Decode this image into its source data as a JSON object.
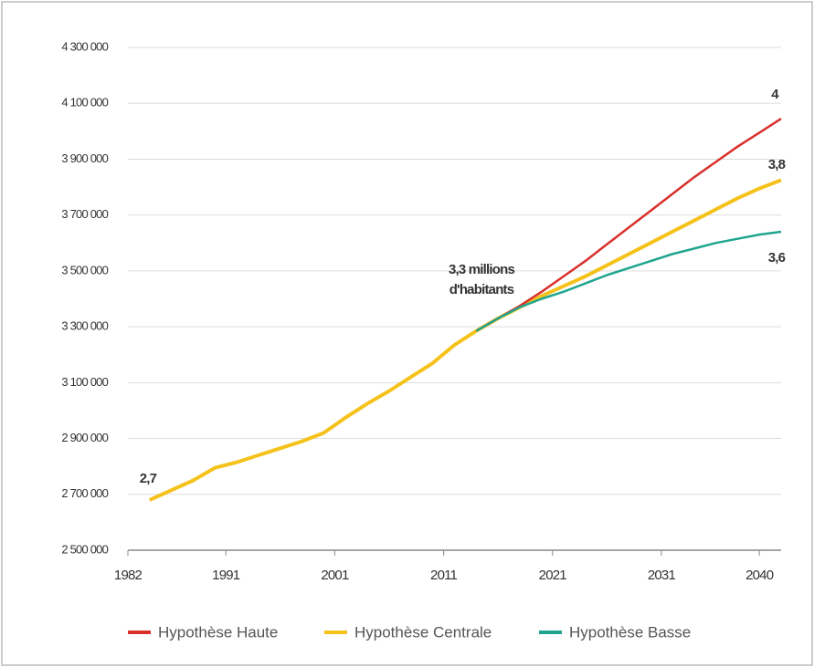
{
  "chart_data": {
    "type": "line",
    "x": [
      1984,
      1986,
      1988,
      1990,
      1992,
      1994,
      1996,
      1998,
      2000,
      2002,
      2004,
      2006,
      2008,
      2010,
      2012,
      2014,
      2016,
      2018,
      2020,
      2022,
      2024,
      2026,
      2028,
      2030,
      2032,
      2034,
      2036,
      2038,
      2040,
      2042
    ],
    "series": [
      {
        "name": "Hypothèse Centrale",
        "color": "#f5c21b",
        "values": [
          2680000,
          2715000,
          2750000,
          2795000,
          2815000,
          2840000,
          2865000,
          2890000,
          2920000,
          2975000,
          3025000,
          3070000,
          3120000,
          3170000,
          3235000,
          3285000,
          3330000,
          3370000,
          3410000,
          3445000,
          3480000,
          3520000,
          3560000,
          3600000,
          3640000,
          3680000,
          3720000,
          3760000,
          3795000,
          3825000
        ]
      },
      {
        "name": "Hypothèse Haute",
        "color": "#d9302c",
        "values": [
          null,
          null,
          null,
          null,
          null,
          null,
          null,
          null,
          null,
          null,
          null,
          null,
          null,
          null,
          null,
          3285000,
          3330000,
          3375000,
          3425000,
          3480000,
          3535000,
          3595000,
          3655000,
          3715000,
          3775000,
          3835000,
          3890000,
          3945000,
          3995000,
          4045000
        ]
      },
      {
        "name": "Hypothèse Basse",
        "color": "#1fa58f",
        "values": [
          null,
          null,
          null,
          null,
          null,
          null,
          null,
          null,
          null,
          null,
          null,
          null,
          null,
          null,
          null,
          3285000,
          3330000,
          3370000,
          3400000,
          3425000,
          3455000,
          3485000,
          3510000,
          3535000,
          3560000,
          3580000,
          3600000,
          3615000,
          3630000,
          3640000
        ]
      }
    ],
    "xlim": [
      1982,
      2042
    ],
    "xticks": [
      1982,
      1991,
      2001,
      2011,
      2021,
      2031,
      2040
    ],
    "ylim": [
      2500000,
      4300000
    ],
    "yticks": [
      {
        "value": 2500000,
        "label": "2 500 000"
      },
      {
        "value": 2700000,
        "label": "2 700 000"
      },
      {
        "value": 2900000,
        "label": "2 900 000"
      },
      {
        "value": 3100000,
        "label": "3 100 000"
      },
      {
        "value": 3300000,
        "label": "3 300 000"
      },
      {
        "value": 3500000,
        "label": "3 500 000"
      },
      {
        "value": 3700000,
        "label": "3 700 000"
      },
      {
        "value": 3900000,
        "label": "3 900 000"
      },
      {
        "value": 4100000,
        "label": "4 100 000"
      },
      {
        "value": 4300000,
        "label": "4 300 000"
      }
    ],
    "grid": true,
    "legend": "bottom",
    "annotations": [
      "2,7",
      "3,3 millions",
      "d'habitants",
      "4",
      "3,8",
      "3,6"
    ]
  }
}
